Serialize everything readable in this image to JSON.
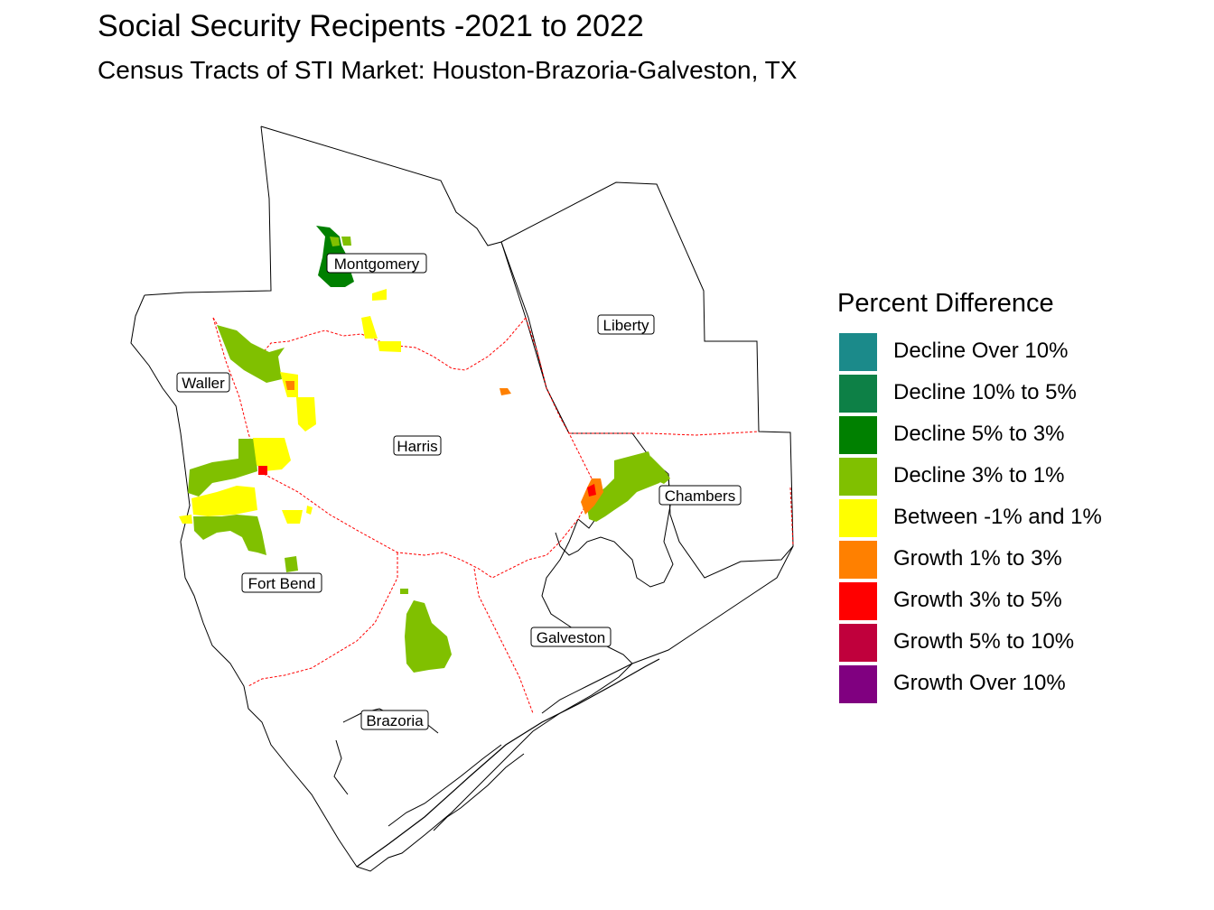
{
  "title": "Social Security Recipents -2021 to 2022",
  "subtitle": "Census Tracts of STI Market: Houston-Brazoria-Galveston, TX",
  "legend": {
    "title": "Percent Difference",
    "items": [
      {
        "label": "Decline Over 10%",
        "color": "#1b8a8a"
      },
      {
        "label": "Decline 10% to 5%",
        "color": "#0d8046"
      },
      {
        "label": "Decline 5% to 3%",
        "color": "#008000"
      },
      {
        "label": "Decline 3% to 1%",
        "color": "#80c000"
      },
      {
        "label": "Between -1% and 1%",
        "color": "#ffff00"
      },
      {
        "label": "Growth 1% to 3%",
        "color": "#ff8000"
      },
      {
        "label": "Growth 3% to 5%",
        "color": "#ff0000"
      },
      {
        "label": "Growth 5% to 10%",
        "color": "#c0003c"
      },
      {
        "label": "Growth Over 10%",
        "color": "#800080"
      }
    ]
  },
  "counties": [
    {
      "name": "Montgomery"
    },
    {
      "name": "Liberty"
    },
    {
      "name": "Waller"
    },
    {
      "name": "Harris"
    },
    {
      "name": "Chambers"
    },
    {
      "name": "Fort Bend"
    },
    {
      "name": "Galveston"
    },
    {
      "name": "Brazoria"
    }
  ],
  "colors": {
    "outline": "#000000",
    "internal_border": "#ff0000"
  }
}
